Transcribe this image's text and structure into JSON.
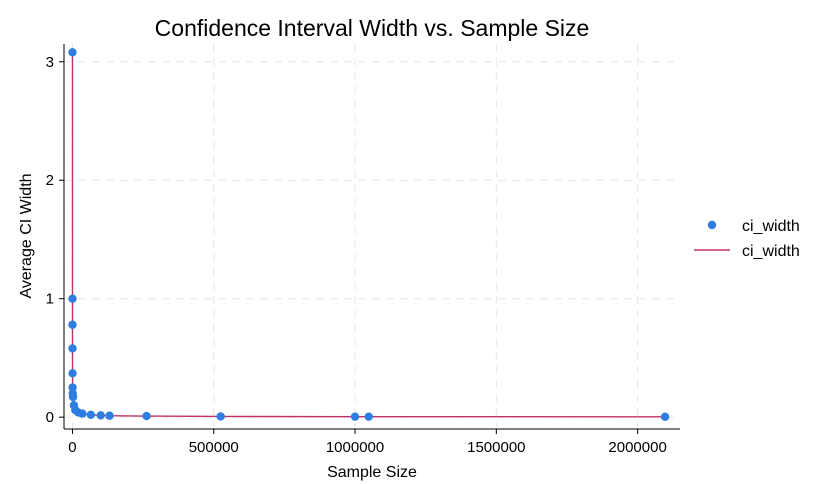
{
  "chart_data": {
    "type": "scatter",
    "title": "Confidence Interval Width vs. Sample Size",
    "xlabel": "Sample Size",
    "ylabel": "Average CI Width",
    "xlim": [
      -30000,
      2150000
    ],
    "ylim": [
      -0.1,
      3.15
    ],
    "xticks": [
      0,
      500000,
      1000000,
      1500000,
      2000000
    ],
    "xtick_labels": [
      "0",
      "500000",
      "1000000",
      "1500000",
      "2000000"
    ],
    "yticks": [
      0,
      1,
      2,
      3
    ],
    "ytick_labels": [
      "0",
      "1",
      "2",
      "3"
    ],
    "grid": true,
    "legend_position": "right",
    "series": [
      {
        "name": "ci_width",
        "kind": "markers",
        "color": "#2e7de0",
        "x": [
          10,
          20,
          50,
          100,
          200,
          500,
          1000,
          2000,
          5000,
          10000,
          20000,
          35000,
          65000,
          100000,
          131072,
          262144,
          524288,
          1000000,
          1048576,
          2097152
        ],
        "y": [
          3.08,
          1.0,
          0.78,
          0.58,
          0.37,
          0.25,
          0.2,
          0.17,
          0.1,
          0.06,
          0.04,
          0.03,
          0.02,
          0.015,
          0.012,
          0.009,
          0.006,
          0.004,
          0.004,
          0.003
        ]
      },
      {
        "name": "ci_width",
        "kind": "line",
        "color": "#c2306a",
        "x": [
          10,
          20,
          50,
          100,
          200,
          500,
          1000,
          2000,
          5000,
          10000,
          20000,
          35000,
          65000,
          100000,
          131072,
          262144,
          524288,
          1000000,
          1048576,
          2097152
        ],
        "y": [
          3.08,
          1.0,
          0.78,
          0.58,
          0.37,
          0.25,
          0.2,
          0.17,
          0.1,
          0.06,
          0.04,
          0.03,
          0.02,
          0.015,
          0.012,
          0.009,
          0.006,
          0.004,
          0.004,
          0.003
        ]
      }
    ],
    "legend": [
      {
        "label": "ci_width",
        "symbol": "marker",
        "color": "#2e7de0"
      },
      {
        "label": "ci_width",
        "symbol": "line",
        "color": "#c2306a"
      }
    ]
  }
}
